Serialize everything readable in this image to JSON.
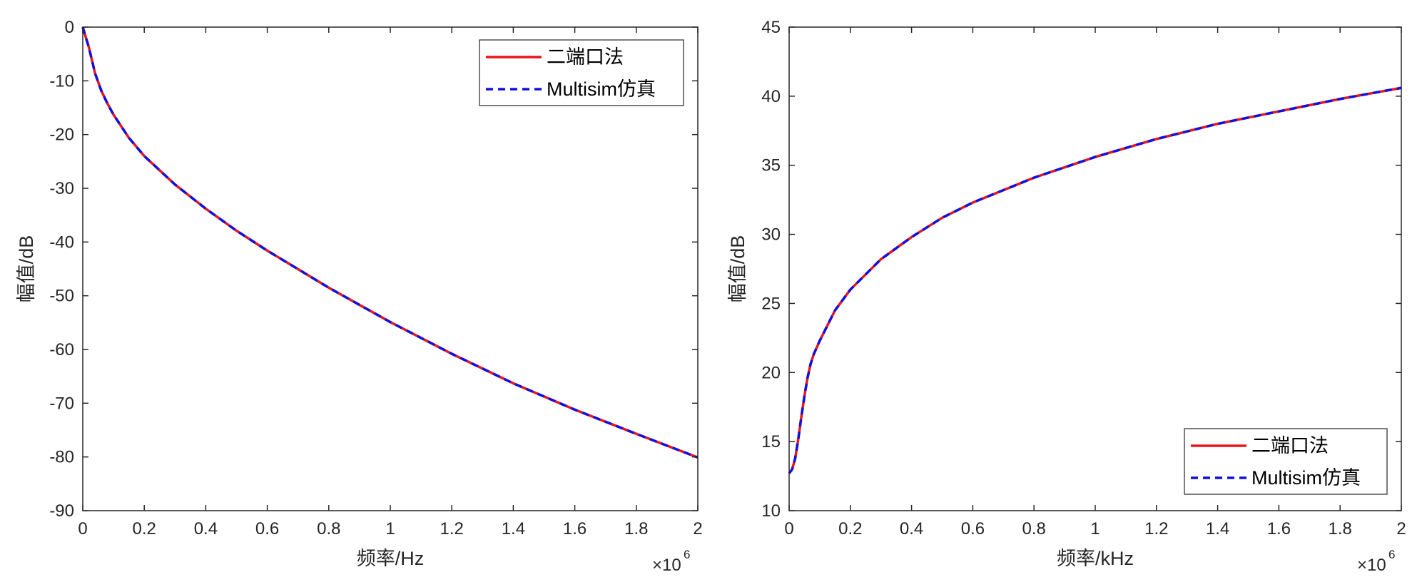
{
  "chart_data": [
    {
      "type": "line",
      "xlabel": "频率/Hz",
      "ylabel": "幅值/dB",
      "x_exponent_base": "×10",
      "x_exponent": "6",
      "xlim": [
        0,
        2000000
      ],
      "ylim": [
        -90,
        0
      ],
      "xticks": [
        0,
        200000,
        400000,
        600000,
        800000,
        1000000,
        1200000,
        1400000,
        1600000,
        1800000,
        2000000
      ],
      "xtick_labels": [
        "0",
        "0.2",
        "0.4",
        "0.6",
        "0.8",
        "1",
        "1.2",
        "1.4",
        "1.6",
        "1.8",
        "2"
      ],
      "yticks": [
        -90,
        -80,
        -70,
        -60,
        -50,
        -40,
        -30,
        -20,
        -10,
        0
      ],
      "ytick_labels": [
        "-90",
        "-80",
        "-70",
        "-60",
        "-50",
        "-40",
        "-30",
        "-20",
        "-10",
        "0"
      ],
      "grid": false,
      "legend_position": "top-right",
      "series": [
        {
          "name": "二端口法",
          "color": "#e8161b",
          "style": "solid",
          "x": [
            0,
            20000,
            40000,
            60000,
            80000,
            100000,
            150000,
            200000,
            300000,
            400000,
            500000,
            600000,
            800000,
            1000000,
            1200000,
            1400000,
            1600000,
            1800000,
            2000000
          ],
          "y": [
            0,
            -3.8,
            -8.6,
            -11.8,
            -14.2,
            -16.3,
            -20.6,
            -24.0,
            -29.3,
            -33.8,
            -37.9,
            -41.6,
            -48.5,
            -54.9,
            -60.8,
            -66.3,
            -71.2,
            -75.7,
            -80.1
          ]
        },
        {
          "name": "Multisim仿真",
          "color": "#1010e0",
          "style": "dashed",
          "x": [
            0,
            20000,
            40000,
            60000,
            80000,
            100000,
            150000,
            200000,
            300000,
            400000,
            500000,
            600000,
            800000,
            1000000,
            1200000,
            1400000,
            1600000,
            1800000,
            2000000
          ],
          "y": [
            0,
            -3.8,
            -8.6,
            -11.8,
            -14.2,
            -16.3,
            -20.6,
            -24.0,
            -29.3,
            -33.8,
            -37.9,
            -41.6,
            -48.5,
            -54.9,
            -60.8,
            -66.3,
            -71.2,
            -75.7,
            -80.1
          ]
        }
      ]
    },
    {
      "type": "line",
      "xlabel": "频率/kHz",
      "ylabel": "幅值/dB",
      "x_exponent_base": "×10",
      "x_exponent": "6",
      "xlim": [
        0,
        2000000
      ],
      "ylim": [
        10,
        45
      ],
      "xticks": [
        0,
        200000,
        400000,
        600000,
        800000,
        1000000,
        1200000,
        1400000,
        1600000,
        1800000,
        2000000
      ],
      "xtick_labels": [
        "0",
        "0.2",
        "0.4",
        "0.6",
        "0.8",
        "1",
        "1.2",
        "1.4",
        "1.6",
        "1.8",
        "2"
      ],
      "yticks": [
        10,
        15,
        20,
        25,
        30,
        35,
        40,
        45
      ],
      "ytick_labels": [
        "10",
        "15",
        "20",
        "25",
        "30",
        "35",
        "40",
        "45"
      ],
      "grid": false,
      "legend_position": "bottom-right",
      "series": [
        {
          "name": "二端口法",
          "color": "#e8161b",
          "style": "solid",
          "x": [
            0,
            10000,
            20000,
            30000,
            40000,
            50000,
            60000,
            70000,
            80000,
            100000,
            150000,
            200000,
            300000,
            400000,
            500000,
            600000,
            800000,
            1000000,
            1200000,
            1400000,
            1600000,
            1800000,
            2000000
          ],
          "y": [
            12.7,
            13.0,
            13.8,
            15.2,
            16.8,
            18.3,
            19.6,
            20.6,
            21.3,
            22.3,
            24.5,
            26.0,
            28.2,
            29.8,
            31.2,
            32.3,
            34.1,
            35.6,
            36.9,
            38.0,
            38.9,
            39.8,
            40.6
          ]
        },
        {
          "name": "Multisim仿真",
          "color": "#1010e0",
          "style": "dashed",
          "x": [
            0,
            10000,
            20000,
            30000,
            40000,
            50000,
            60000,
            70000,
            80000,
            100000,
            150000,
            200000,
            300000,
            400000,
            500000,
            600000,
            800000,
            1000000,
            1200000,
            1400000,
            1600000,
            1800000,
            2000000
          ],
          "y": [
            12.7,
            13.0,
            13.8,
            15.2,
            16.8,
            18.3,
            19.6,
            20.6,
            21.3,
            22.3,
            24.5,
            26.0,
            28.2,
            29.8,
            31.2,
            32.3,
            34.1,
            35.6,
            36.9,
            38.0,
            38.9,
            39.8,
            40.6
          ]
        }
      ]
    }
  ]
}
